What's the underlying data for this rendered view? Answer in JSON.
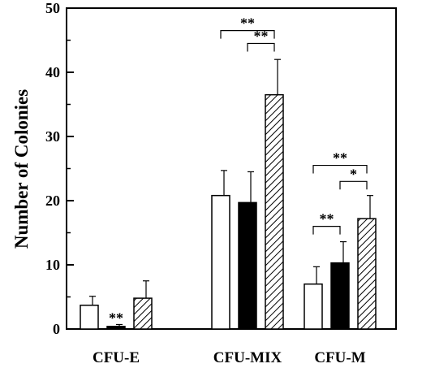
{
  "chart_data": {
    "type": "bar",
    "ylabel": "Number of Colonies",
    "ylim": [
      0,
      50
    ],
    "yticks": [
      "0",
      "10",
      "20",
      "30",
      "40",
      "50"
    ],
    "categories": [
      "CFU-E",
      "CFU-MIX",
      "CFU-M"
    ],
    "series": [
      {
        "fill": "open",
        "values": [
          3.7,
          20.8,
          7.0
        ],
        "errors": [
          1.4,
          3.9,
          2.7
        ]
      },
      {
        "fill": "solid",
        "values": [
          0.4,
          19.7,
          10.3
        ],
        "errors": [
          0.3,
          4.8,
          3.3
        ]
      },
      {
        "fill": "hatched",
        "values": [
          4.8,
          36.5,
          17.2
        ],
        "errors": [
          2.7,
          5.5,
          3.6
        ]
      }
    ],
    "annotations": [
      {
        "category": 0,
        "type": "single",
        "series": 1,
        "label": "**"
      },
      {
        "category": 1,
        "type": "bracket",
        "from": 0,
        "to": 2,
        "level": 46.5,
        "label": "**"
      },
      {
        "category": 1,
        "type": "bracket",
        "from": 1,
        "to": 2,
        "level": 44.5,
        "label": "**"
      },
      {
        "category": 2,
        "type": "bracket",
        "from": 0,
        "to": 2,
        "level": 25.5,
        "label": "**"
      },
      {
        "category": 2,
        "type": "bracket",
        "from": 1,
        "to": 2,
        "level": 23.0,
        "label": "*"
      },
      {
        "category": 2,
        "type": "bracket",
        "from": 0,
        "to": 1,
        "level": 16.0,
        "label": "**"
      }
    ],
    "grid": false,
    "legend": "none"
  }
}
